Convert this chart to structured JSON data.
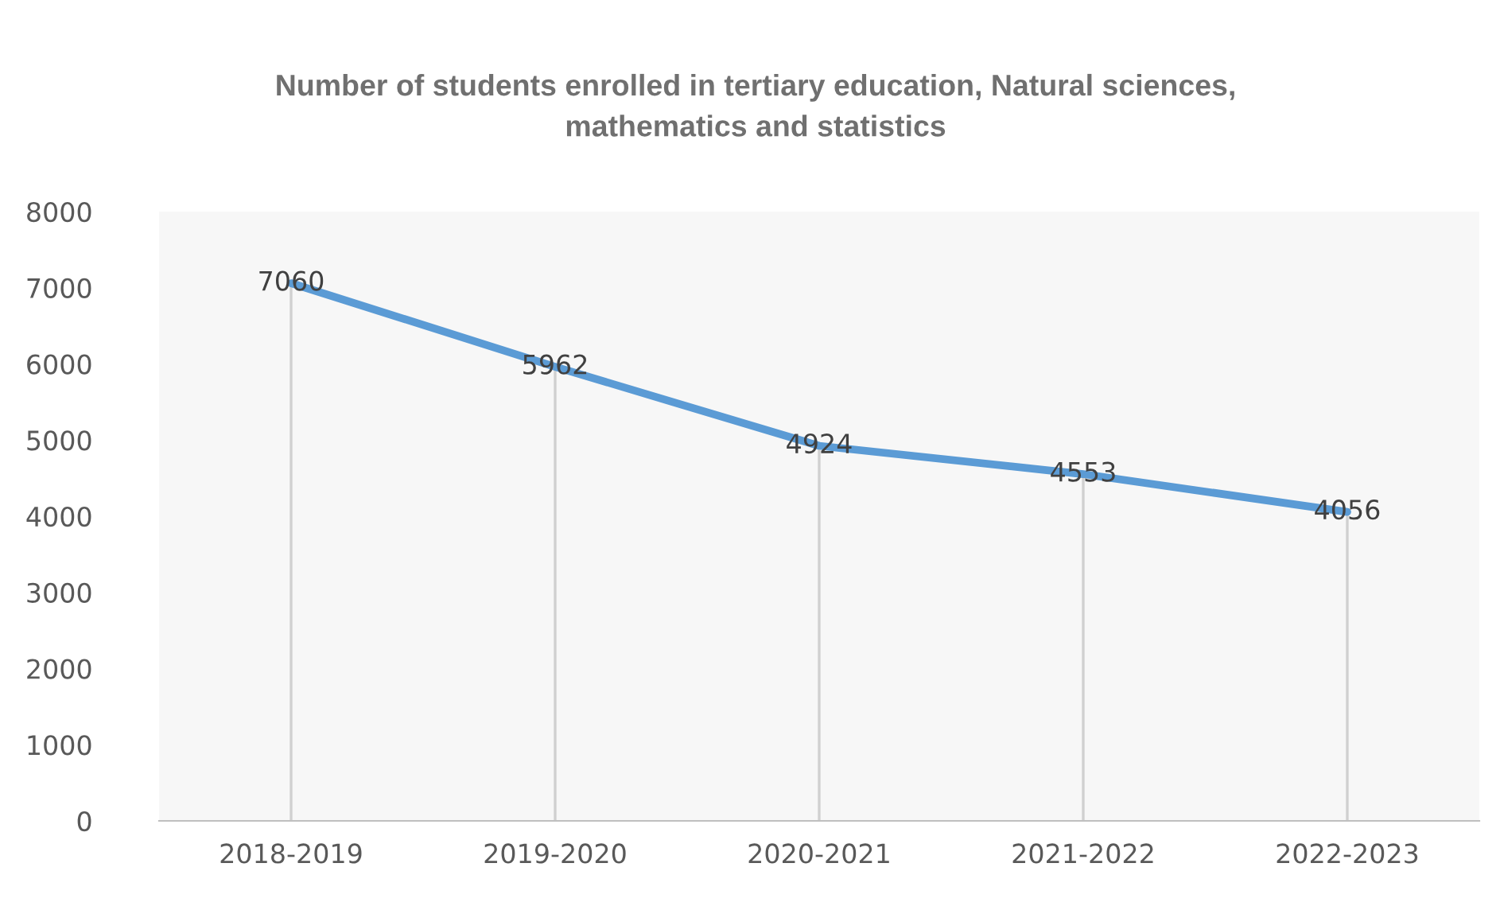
{
  "chart_data": {
    "type": "line",
    "title": "Number of students enrolled in tertiary education, Natural sciences, mathematics and statistics",
    "categories": [
      "2018-2019",
      "2019-2020",
      "2020-2021",
      "2021-2022",
      "2022-2023"
    ],
    "series": [
      {
        "color": "#5b9bd5",
        "values": [
          7060,
          5962,
          4924,
          4553,
          4056
        ]
      }
    ],
    "ylim": [
      0,
      8000
    ],
    "yticks": [
      0,
      1000,
      2000,
      3000,
      4000,
      5000,
      6000,
      7000,
      8000
    ],
    "data_labels": true,
    "grid": "x",
    "marker": "none",
    "line_style": "solid"
  }
}
